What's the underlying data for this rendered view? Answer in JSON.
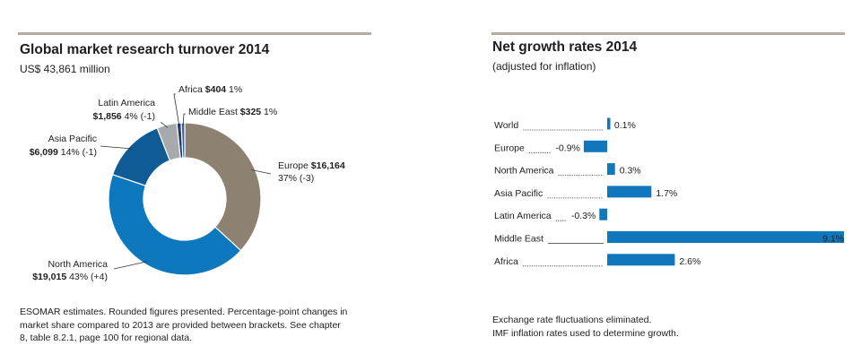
{
  "colors": {
    "rule": "#b5aca3",
    "europe": "#8d8172",
    "north_america": "#0d78be",
    "asia_pacific": "#0f5b96",
    "latin_america": "#a7aaad",
    "africa": "#243a6a",
    "middle_east": "#3c63a8",
    "bar": "#1077bd",
    "leader": "#333333"
  },
  "left_panel": {
    "title": "Global market research turnover 2014",
    "subtitle": "US$ 43,861 million",
    "footnote_lines": [
      "ESOMAR estimates. Rounded figures presented. Percentage-point changes in",
      "market share compared to 2013 are provided between brackets. See chapter",
      "8, table 8.2.1, page 100 for regional data."
    ]
  },
  "right_panel": {
    "title": "Net growth rates 2014",
    "subtitle": "(adjusted for inflation)",
    "footnote_lines": [
      "Exchange rate fluctuations eliminated.",
      "IMF inflation rates used to determine growth."
    ]
  },
  "chart_data": [
    {
      "type": "pie",
      "variant": "donut",
      "title": "Global market research turnover 2014",
      "subtitle": "US$ 43,861 million",
      "unit": "US$ million",
      "slices": [
        {
          "key": "europe",
          "name": "Europe",
          "value_label": "$16,164",
          "value": 16164,
          "share": 37,
          "change": "(-3)",
          "share_label": "37% (-3)"
        },
        {
          "key": "north_america",
          "name": "North America",
          "value_label": "$19,015",
          "value": 19015,
          "share": 43,
          "change": "(+4)",
          "share_label": "43% (+4)"
        },
        {
          "key": "asia_pacific",
          "name": "Asia Pacific",
          "value_label": "$6,099",
          "value": 6099,
          "share": 14,
          "change": "(-1)",
          "share_label": "14% (-1)"
        },
        {
          "key": "latin_america",
          "name": "Latin America",
          "value_label": "$1,856",
          "value": 1856,
          "share": 4,
          "change": "(-1)",
          "share_label": "4% (-1)"
        },
        {
          "key": "africa",
          "name": "Africa",
          "value_label": "$404",
          "value": 404,
          "share": 1,
          "change": "",
          "share_label": "1%"
        },
        {
          "key": "middle_east",
          "name": "Middle East",
          "value_label": "$325",
          "value": 325,
          "share": 1,
          "change": "",
          "share_label": "1%"
        }
      ]
    },
    {
      "type": "bar",
      "orientation": "horizontal",
      "title": "Net growth rates 2014",
      "subtitle": "(adjusted for inflation)",
      "unit": "%",
      "xlim": [
        -0.9,
        9.1
      ],
      "categories": [
        "World",
        "Europe",
        "North America",
        "Asia Pacific",
        "Latin America",
        "Middle East",
        "Africa"
      ],
      "values": [
        0.1,
        -0.9,
        0.3,
        1.7,
        -0.3,
        9.1,
        2.6
      ],
      "value_labels": [
        "0.1%",
        "-0.9%",
        "0.3%",
        "1.7%",
        "-0.3%",
        "9.1%",
        "2.6%"
      ]
    }
  ]
}
